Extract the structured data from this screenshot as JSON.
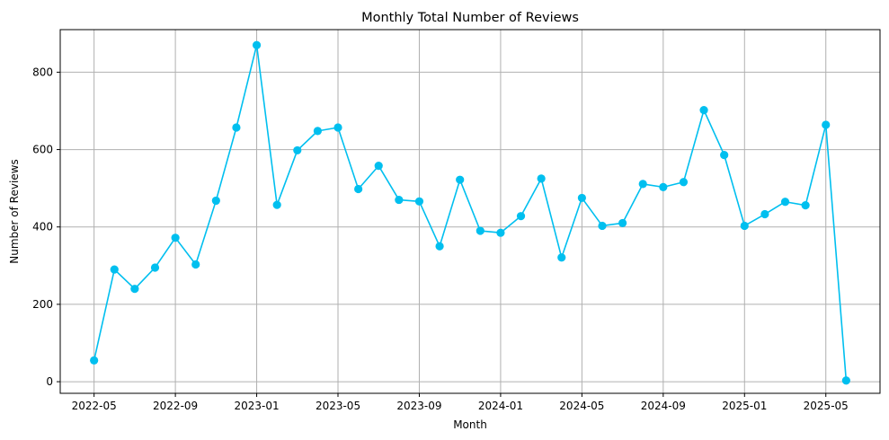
{
  "chart_data": {
    "type": "line",
    "title": "Monthly Total Number of Reviews",
    "xlabel": "Month",
    "ylabel": "Number of Reviews",
    "grid": true,
    "color": "#00bfef",
    "marker": "circle",
    "x_ticks": [
      "2022-05",
      "2022-09",
      "2023-01",
      "2023-05",
      "2023-09",
      "2024-01",
      "2024-05",
      "2024-09",
      "2025-01",
      "2025-05"
    ],
    "y_ticks": [
      0,
      200,
      400,
      600,
      800
    ],
    "ylim": [
      -30,
      910
    ],
    "x": [
      "2022-05",
      "2022-06",
      "2022-07",
      "2022-08",
      "2022-09",
      "2022-10",
      "2022-11",
      "2022-12",
      "2023-01",
      "2023-02",
      "2023-03",
      "2023-04",
      "2023-05",
      "2023-06",
      "2023-07",
      "2023-08",
      "2023-09",
      "2023-10",
      "2023-11",
      "2023-12",
      "2024-01",
      "2024-02",
      "2024-03",
      "2024-04",
      "2024-05",
      "2024-06",
      "2024-07",
      "2024-08",
      "2024-09",
      "2024-10",
      "2024-11",
      "2024-12",
      "2025-01",
      "2025-02",
      "2025-03",
      "2025-04",
      "2025-05",
      "2025-06"
    ],
    "series": [
      {
        "values": [
          55,
          290,
          240,
          295,
          372,
          303,
          468,
          657,
          870,
          457,
          598,
          648,
          657,
          498,
          558,
          470,
          466,
          350,
          522,
          390,
          385,
          428,
          525,
          321,
          475,
          403,
          410,
          511,
          503,
          516,
          702,
          586,
          403,
          433,
          465,
          456,
          664,
          3
        ]
      }
    ]
  }
}
